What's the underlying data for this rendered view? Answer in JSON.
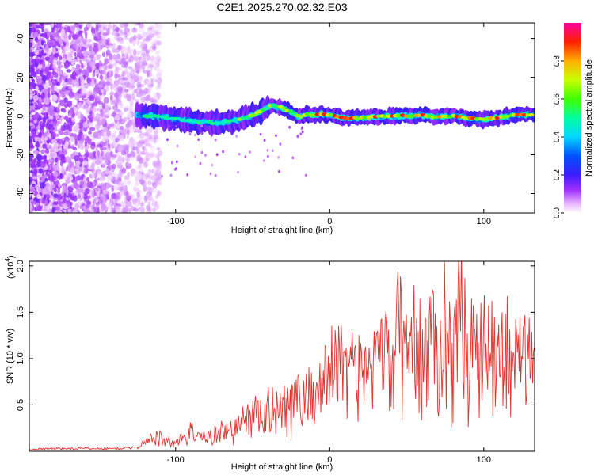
{
  "title": "C2E1.2025.270.02.32.E03",
  "chart_data": [
    {
      "type": "heatmap",
      "title": "C2E1.2025.270.02.32.E03",
      "xlabel": "Height of straight line (km)",
      "ylabel": "Frequency (Hz)",
      "xlim": [
        -195,
        133
      ],
      "ylim": [
        -50,
        48
      ],
      "x_ticks": [
        -100,
        0,
        100
      ],
      "x_tick_labels": [
        "-100",
        "0",
        "100"
      ],
      "y_ticks": [
        -40,
        -20,
        0,
        20,
        40
      ],
      "y_tick_labels": [
        "-40",
        "-20",
        "0",
        "20",
        "40"
      ],
      "dominant_frequency_trace": {
        "x": [
          -125,
          -115,
          -105,
          -95,
          -85,
          -75,
          -65,
          -55,
          -45,
          -38,
          -30,
          -25,
          -20,
          -15,
          -10,
          -5,
          0,
          10,
          20,
          30,
          40,
          50,
          60,
          70,
          80,
          90,
          100,
          110,
          120,
          130
        ],
        "y": [
          0.5,
          0.0,
          -1.0,
          -2.0,
          -3.0,
          -3.5,
          -3.0,
          -1.0,
          2.0,
          5.5,
          4.0,
          2.0,
          -0.5,
          1.0,
          0.5,
          1.0,
          0.5,
          -1.0,
          -1.0,
          -0.5,
          0.0,
          0.0,
          0.5,
          -0.5,
          0.0,
          -1.0,
          -2.0,
          -0.5,
          0.5,
          0.5
        ]
      },
      "noise_region_x": [
        -195,
        -110
      ]
    },
    {
      "type": "colorbar",
      "label": "Normalized spectral amplitude",
      "range": [
        0.0,
        1.0
      ],
      "ticks": [
        0.0,
        0.2,
        0.4,
        0.6,
        0.8
      ],
      "tick_labels": [
        "0.0",
        "0.2",
        "0.4",
        "0.6",
        "0.8"
      ]
    },
    {
      "type": "line",
      "xlabel": "Height of straight line (km)",
      "ylabel": "SNR (10 * v/v)",
      "y_scale_label": "(x10",
      "y_scale_exponent": "4",
      "y_scale_suffix": ")",
      "xlim": [
        -195,
        133
      ],
      "ylim": [
        0,
        2.05
      ],
      "x_ticks": [
        -100,
        0,
        100
      ],
      "x_tick_labels": [
        "-100",
        "0",
        "100"
      ],
      "y_ticks": [
        0.5,
        1.0,
        1.5,
        2.0
      ],
      "y_tick_labels": [
        "0.5",
        "1.0",
        "1.5",
        "2.0"
      ],
      "series": [
        {
          "name": "SNR",
          "color": "#e8302c",
          "x": [
            -195,
            -180,
            -160,
            -140,
            -125,
            -110,
            -105,
            -100,
            -95,
            -90,
            -85,
            -80,
            -75,
            -70,
            -65,
            -60,
            -55,
            -50,
            -45,
            -40,
            -35,
            -30,
            -25,
            -20,
            -15,
            -10,
            -5,
            0,
            5,
            10,
            15,
            20,
            25,
            30,
            35,
            40,
            45,
            50,
            55,
            60,
            65,
            70,
            75,
            80,
            85,
            90,
            95,
            100,
            105,
            110,
            115,
            120,
            125,
            130
          ],
          "values": [
            0.02,
            0.03,
            0.03,
            0.03,
            0.04,
            0.22,
            0.15,
            0.12,
            0.2,
            0.3,
            0.22,
            0.18,
            0.25,
            0.3,
            0.28,
            0.35,
            0.45,
            0.55,
            0.5,
            0.6,
            0.65,
            0.7,
            0.68,
            0.75,
            0.8,
            0.85,
            0.9,
            1.2,
            1.25,
            1.45,
            1.25,
            1.05,
            1.3,
            1.1,
            1.5,
            1.1,
            1.8,
            1.3,
            1.75,
            1.3,
            1.6,
            1.4,
            1.85,
            1.35,
            2.05,
            1.4,
            1.6,
            1.45,
            1.75,
            1.35,
            1.55,
            1.3,
            1.4,
            1.25
          ]
        }
      ]
    }
  ]
}
